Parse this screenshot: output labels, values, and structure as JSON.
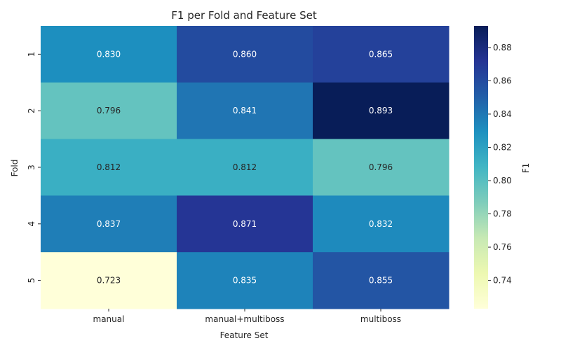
{
  "chart_data": {
    "type": "heatmap",
    "title": "F1 per Fold and Feature Set",
    "xlabel": "Feature Set",
    "ylabel": "Fold",
    "colorbar_label": "F1",
    "colormap": "YlGnBu",
    "x_categories": [
      "manual",
      "manual+multiboss",
      "multiboss"
    ],
    "y_categories": [
      "1",
      "2",
      "3",
      "4",
      "5"
    ],
    "values": [
      [
        0.83,
        0.86,
        0.865
      ],
      [
        0.796,
        0.841,
        0.893
      ],
      [
        0.812,
        0.812,
        0.796
      ],
      [
        0.837,
        0.871,
        0.832
      ],
      [
        0.723,
        0.835,
        0.855
      ]
    ],
    "cell_labels": [
      [
        "0.830",
        "0.860",
        "0.865"
      ],
      [
        "0.796",
        "0.841",
        "0.893"
      ],
      [
        "0.812",
        "0.812",
        "0.796"
      ],
      [
        "0.837",
        "0.871",
        "0.832"
      ],
      [
        "0.723",
        "0.835",
        "0.855"
      ]
    ],
    "color_range": [
      0.723,
      0.893
    ],
    "colorbar_ticks": [
      "0.74",
      "0.76",
      "0.78",
      "0.80",
      "0.82",
      "0.84",
      "0.86",
      "0.88"
    ],
    "grid": false
  }
}
